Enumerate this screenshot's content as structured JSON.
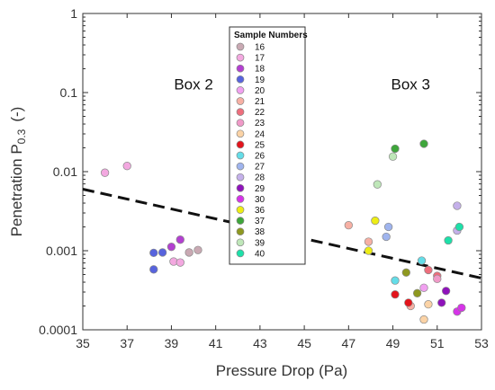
{
  "chart_data": {
    "type": "scatter",
    "xlabel": "Pressure Drop (Pa)",
    "ylabel_main": "Penetration P",
    "ylabel_sub": "0.3",
    "ylabel_unit": "(-)",
    "xlim": [
      35,
      53
    ],
    "ylim": [
      0.0001,
      1
    ],
    "y_scale": "log",
    "x_ticks": [
      35,
      37,
      39,
      41,
      43,
      45,
      47,
      49,
      51,
      53
    ],
    "y_ticks": [
      0.0001,
      0.001,
      0.01,
      0.1,
      1
    ],
    "y_tick_labels": [
      "0.0001",
      "0.001",
      "0.01",
      "0.1",
      "1"
    ],
    "grid": false,
    "legend": {
      "title": "Sample Numbers",
      "placement": "top-center"
    },
    "annotations": [
      {
        "text": "Box 2",
        "x": 40.0,
        "y": 0.11
      },
      {
        "text": "Box 3",
        "x": 49.8,
        "y": 0.11
      }
    ],
    "threshold_line": {
      "style": "dashed",
      "x": [
        35,
        53
      ],
      "y": [
        0.006,
        0.00045
      ]
    },
    "series": [
      {
        "name": "16",
        "color": "#c9a9b3",
        "points": [
          [
            39.8,
            0.00095
          ],
          [
            40.2,
            0.00102
          ]
        ]
      },
      {
        "name": "17",
        "color": "#f3a8e0",
        "points": [
          [
            36.0,
            0.0097
          ],
          [
            37.0,
            0.0118
          ],
          [
            39.1,
            0.00073
          ],
          [
            39.4,
            0.00071
          ]
        ]
      },
      {
        "name": "18",
        "color": "#b33fd1",
        "points": [
          [
            39.0,
            0.00112
          ],
          [
            39.4,
            0.00138
          ]
        ]
      },
      {
        "name": "19",
        "color": "#5763dd",
        "points": [
          [
            38.2,
            0.00058
          ],
          [
            38.2,
            0.00094
          ],
          [
            38.6,
            0.00095
          ]
        ]
      },
      {
        "name": "20",
        "color": "#f1a0f0",
        "points": [
          [
            50.4,
            0.00034
          ]
        ]
      },
      {
        "name": "21",
        "color": "#f7b0a4",
        "points": [
          [
            47.0,
            0.0021
          ],
          [
            47.9,
            0.0013
          ],
          [
            49.8,
            0.0002
          ]
        ]
      },
      {
        "name": "22",
        "color": "#ee6e7c",
        "points": [
          [
            50.6,
            0.00057
          ],
          [
            51.0,
            0.00048
          ]
        ]
      },
      {
        "name": "23",
        "color": "#f09ac8",
        "points": [
          [
            51.0,
            0.00044
          ]
        ]
      },
      {
        "name": "24",
        "color": "#fbd3a6",
        "points": [
          [
            50.4,
            0.000135
          ],
          [
            50.6,
            0.00021
          ]
        ]
      },
      {
        "name": "25",
        "color": "#e3141c",
        "points": [
          [
            49.1,
            0.00028
          ],
          [
            49.7,
            0.00022
          ]
        ]
      },
      {
        "name": "26",
        "color": "#64dde8",
        "points": [
          [
            50.3,
            0.00075
          ],
          [
            49.1,
            0.00042
          ]
        ]
      },
      {
        "name": "27",
        "color": "#9fb4ee",
        "points": [
          [
            48.8,
            0.002
          ],
          [
            48.7,
            0.0015
          ]
        ]
      },
      {
        "name": "28",
        "color": "#c4b0ea",
        "points": [
          [
            51.9,
            0.0037
          ],
          [
            51.9,
            0.0018
          ]
        ]
      },
      {
        "name": "29",
        "color": "#8f13bb",
        "points": [
          [
            51.2,
            0.00022
          ],
          [
            51.4,
            0.00031
          ]
        ]
      },
      {
        "name": "30",
        "color": "#d633e8",
        "points": [
          [
            51.9,
            0.00017
          ],
          [
            52.1,
            0.00019
          ]
        ]
      },
      {
        "name": "36",
        "color": "#eded15",
        "points": [
          [
            48.2,
            0.0024
          ],
          [
            47.9,
            0.001
          ]
        ]
      },
      {
        "name": "37",
        "color": "#3ea63b",
        "points": [
          [
            49.1,
            0.0195
          ],
          [
            50.4,
            0.0225
          ]
        ]
      },
      {
        "name": "38",
        "color": "#8e9820",
        "points": [
          [
            49.6,
            0.00053
          ],
          [
            50.1,
            0.00029
          ]
        ]
      },
      {
        "name": "39",
        "color": "#bfe7b9",
        "points": [
          [
            49.0,
            0.0155
          ],
          [
            48.3,
            0.0069
          ]
        ]
      },
      {
        "name": "40",
        "color": "#1de0a9",
        "points": [
          [
            51.5,
            0.00135
          ],
          [
            52.0,
            0.002
          ]
        ]
      }
    ]
  }
}
